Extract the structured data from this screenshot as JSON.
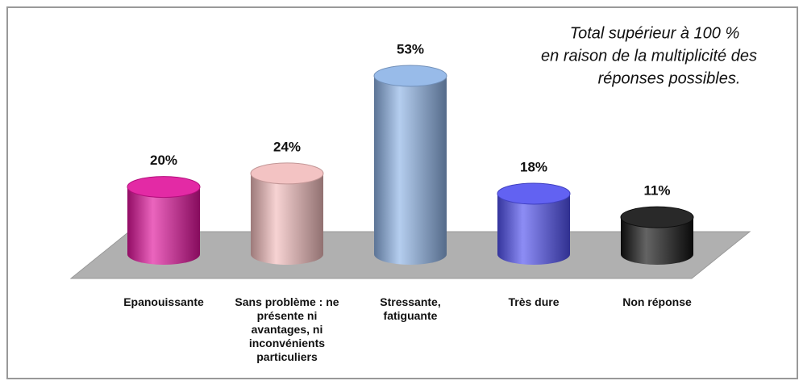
{
  "chart_data": {
    "type": "bar",
    "categories": [
      "Epanouissante",
      "Sans problème : ne présente ni avantages, ni inconvénients particuliers",
      "Stressante, fatiguante",
      "Très dure",
      "Non réponse"
    ],
    "values": [
      20,
      24,
      53,
      18,
      11
    ],
    "value_labels": [
      "20%",
      "24%",
      "53%",
      "18%",
      "11%"
    ],
    "colors": [
      "#e0129b",
      "#f2bcbc",
      "#8db3e6",
      "#5050f0",
      "#111111"
    ],
    "annotation": [
      "Total supérieur à 100 %",
      "en raison de la multiplicité des",
      "réponses possibles."
    ]
  }
}
